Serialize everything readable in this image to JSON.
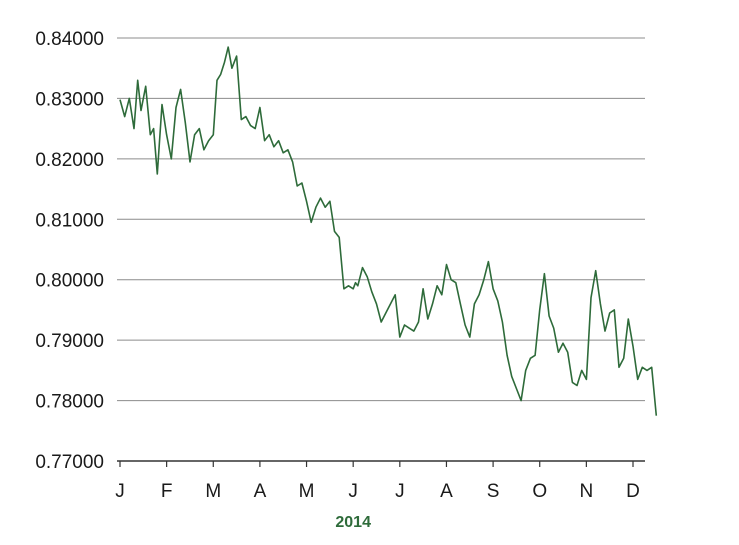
{
  "chart_data": {
    "type": "line",
    "title": "",
    "xlabel": "2014",
    "ylabel": "",
    "ylim": [
      0.77,
      0.84
    ],
    "y_ticks": [
      "0.77000",
      "0.78000",
      "0.79000",
      "0.80000",
      "0.81000",
      "0.82000",
      "0.83000",
      "0.84000"
    ],
    "y_tick_values": [
      0.77,
      0.78,
      0.79,
      0.8,
      0.81,
      0.82,
      0.83,
      0.84
    ],
    "x_ticks": [
      "J",
      "F",
      "M",
      "A",
      "M",
      "J",
      "J",
      "A",
      "S",
      "O",
      "N",
      "D"
    ],
    "grid": "horizontal",
    "colors": {
      "line": "#2e6b3a",
      "grid": "#8c8c8c",
      "axis": "#333333"
    },
    "series": [
      {
        "x": [
          0.0,
          0.1,
          0.2,
          0.3,
          0.38,
          0.45,
          0.55,
          0.65,
          0.72,
          0.8,
          0.9,
          1.0,
          1.1,
          1.2,
          1.3,
          1.4,
          1.5,
          1.6,
          1.7,
          1.8,
          1.9,
          2.0,
          2.08,
          2.16,
          2.24,
          2.32,
          2.4,
          2.5,
          2.6,
          2.7,
          2.8,
          2.9,
          3.0,
          3.1,
          3.2,
          3.3,
          3.4,
          3.5,
          3.6,
          3.7,
          3.8,
          3.9,
          4.0,
          4.1,
          4.2,
          4.3,
          4.4,
          4.5,
          4.6,
          4.7,
          4.8,
          4.9,
          5.0,
          5.05,
          5.1,
          5.2,
          5.3,
          5.4,
          5.5,
          5.6,
          5.7,
          5.8,
          5.9,
          6.0,
          6.1,
          6.2,
          6.3,
          6.4,
          6.5,
          6.6,
          6.7,
          6.8,
          6.9,
          7.0,
          7.1,
          7.2,
          7.3,
          7.4,
          7.5,
          7.6,
          7.7,
          7.8,
          7.9,
          8.0,
          8.1,
          8.2,
          8.3,
          8.4,
          8.5,
          8.6,
          8.7,
          8.8,
          8.9,
          9.0,
          9.1,
          9.2,
          9.3,
          9.4,
          9.5,
          9.6,
          9.7,
          9.8,
          9.9,
          10.0,
          10.1,
          10.2,
          10.3,
          10.4,
          10.5,
          10.6,
          10.7,
          10.8,
          10.9,
          11.0,
          11.1,
          11.2,
          11.3,
          11.4,
          11.5
        ],
        "values": [
          0.8298,
          0.827,
          0.83,
          0.825,
          0.833,
          0.828,
          0.832,
          0.824,
          0.825,
          0.8175,
          0.829,
          0.824,
          0.82,
          0.8285,
          0.8315,
          0.826,
          0.8195,
          0.824,
          0.825,
          0.8215,
          0.823,
          0.824,
          0.833,
          0.834,
          0.836,
          0.8385,
          0.835,
          0.837,
          0.8265,
          0.827,
          0.8255,
          0.825,
          0.8285,
          0.823,
          0.824,
          0.822,
          0.823,
          0.821,
          0.8215,
          0.8195,
          0.8155,
          0.816,
          0.813,
          0.8095,
          0.812,
          0.8135,
          0.812,
          0.813,
          0.808,
          0.807,
          0.7985,
          0.799,
          0.7985,
          0.7995,
          0.799,
          0.802,
          0.8005,
          0.798,
          0.796,
          0.793,
          0.7945,
          0.796,
          0.7975,
          0.7905,
          0.7925,
          0.792,
          0.7915,
          0.793,
          0.7985,
          0.7935,
          0.796,
          0.799,
          0.7975,
          0.8025,
          0.8,
          0.7995,
          0.796,
          0.7925,
          0.7905,
          0.796,
          0.7975,
          0.8,
          0.803,
          0.7985,
          0.7965,
          0.793,
          0.7875,
          0.784,
          0.782,
          0.78,
          0.785,
          0.787,
          0.7875,
          0.795,
          0.801,
          0.794,
          0.792,
          0.788,
          0.7895,
          0.788,
          0.783,
          0.7825,
          0.785,
          0.7835,
          0.797,
          0.8015,
          0.796,
          0.7915,
          0.7945,
          0.795,
          0.7855,
          0.787,
          0.7935,
          0.789,
          0.7835,
          0.7855,
          0.785,
          0.7855,
          0.7775
        ]
      }
    ]
  }
}
